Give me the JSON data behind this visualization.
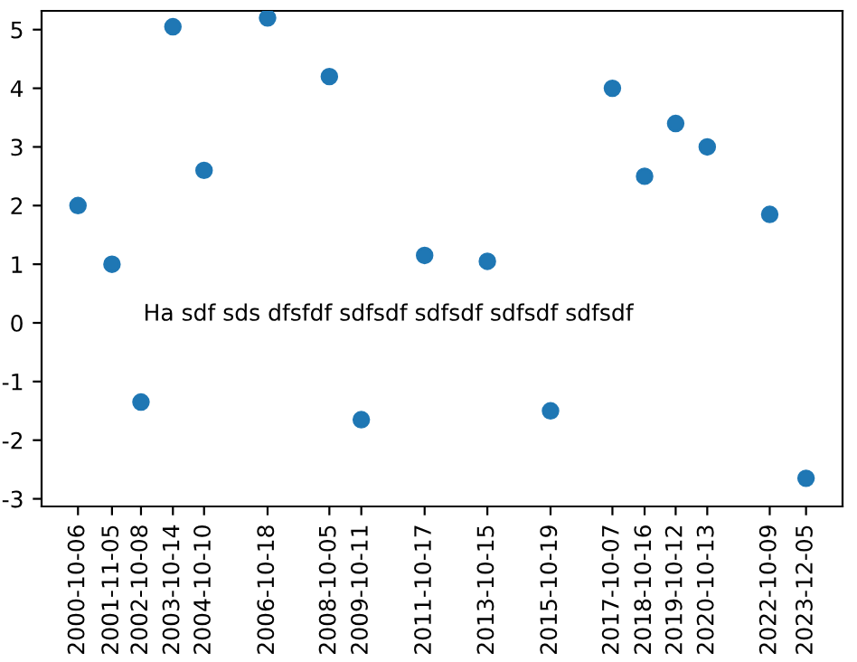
{
  "chart_data": {
    "type": "scatter",
    "x": [
      "2000-10-06",
      "2001-11-05",
      "2002-10-08",
      "2003-10-14",
      "2004-10-10",
      "2006-10-18",
      "2008-10-05",
      "2009-10-11",
      "2011-10-17",
      "2013-10-15",
      "2015-10-19",
      "2017-10-07",
      "2018-10-16",
      "2019-10-12",
      "2020-10-13",
      "2022-10-09",
      "2023-12-05"
    ],
    "series": [
      {
        "color": "#1f77b4",
        "values": [
          2.0,
          1.0,
          -1.35,
          5.05,
          2.6,
          5.2,
          4.2,
          -1.65,
          1.15,
          1.05,
          -1.5,
          4.0,
          2.5,
          3.4,
          3.0,
          1.85,
          -2.65
        ]
      }
    ],
    "xticks": [
      "2000-10-06",
      "2001-11-05",
      "2002-10-08",
      "2003-10-14",
      "2004-10-10",
      "2006-10-18",
      "2008-10-05",
      "2009-10-11",
      "2011-10-17",
      "2013-10-15",
      "2015-10-19",
      "2017-10-07",
      "2018-10-16",
      "2019-10-12",
      "2020-10-13",
      "2022-10-09",
      "2023-12-05"
    ],
    "xlim": [
      "1999-08-10",
      "2025-02-01"
    ],
    "ylim": [
      -3.13,
      5.32
    ],
    "yticks": [
      -3,
      -2,
      -1,
      0,
      1,
      2,
      3,
      4,
      5
    ],
    "annotations": [
      "Ha sdf sds dfsfdf sdfsdf sdfsdf sdfsdf sdfsdf"
    ],
    "marker": "circle",
    "grid": false,
    "legend": false
  }
}
